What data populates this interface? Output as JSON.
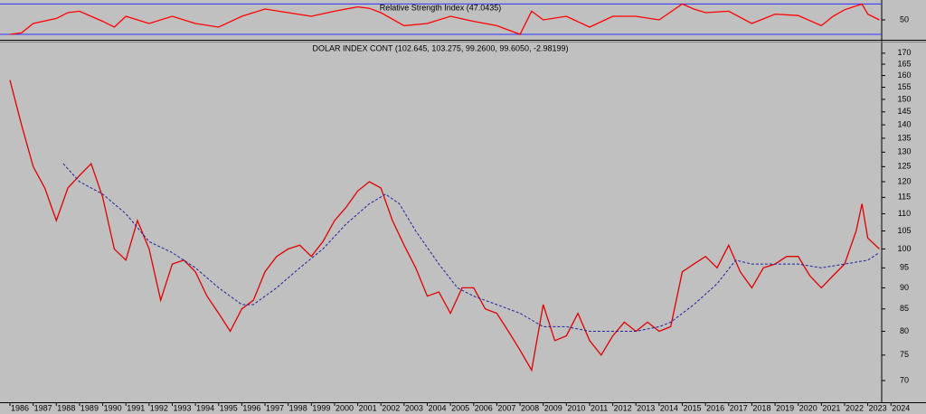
{
  "chart_data": [
    {
      "type": "line",
      "title": "Relative Strength Index (47.0435)",
      "xlim": [
        1985.57,
        2023.6
      ],
      "ylim": [
        25,
        75
      ],
      "yticks": [
        50
      ],
      "levels": [
        72,
        30
      ],
      "level_color": "#3030ff",
      "series": [
        {
          "color": "#ff0000",
          "x": [
            1986,
            1986.5,
            1987,
            1988,
            1988.5,
            1989,
            1990,
            1990.5,
            1991,
            1992,
            1993,
            1994,
            1995,
            1996,
            1997,
            1998,
            1999,
            2000,
            2001,
            2001.5,
            2002,
            2003,
            2004,
            2005,
            2006,
            2007,
            2008,
            2008.5,
            2009,
            2010,
            2011,
            2012,
            2013,
            2014,
            2015,
            2015.5,
            2016,
            2017,
            2018,
            2019,
            2020,
            2021,
            2021.5,
            2022,
            2022.75,
            2023,
            2023.5
          ],
          "values": [
            30,
            32,
            45,
            52,
            60,
            62,
            48,
            40,
            55,
            45,
            55,
            45,
            40,
            55,
            65,
            60,
            55,
            62,
            68,
            66,
            60,
            42,
            45,
            55,
            48,
            42,
            30,
            62,
            50,
            55,
            40,
            55,
            55,
            50,
            72,
            65,
            60,
            62,
            45,
            58,
            56,
            42,
            55,
            64,
            72,
            58,
            50
          ]
        }
      ]
    },
    {
      "type": "line",
      "title": "DOLAR INDEX CONT (102.645, 103.275, 99.2600, 99.6050, -2.98199)",
      "xlim": [
        1985.57,
        2023.6
      ],
      "ylim": [
        66,
        175
      ],
      "log_y": true,
      "yticks": [
        70,
        75,
        80,
        85,
        90,
        95,
        100,
        105,
        110,
        115,
        120,
        125,
        130,
        135,
        140,
        145,
        150,
        155,
        160,
        165,
        170
      ],
      "xticks": [
        1986,
        1987,
        1988,
        1989,
        1990,
        1991,
        1992,
        1993,
        1994,
        1995,
        1996,
        1997,
        1998,
        1999,
        2000,
        2001,
        2002,
        2003,
        2004,
        2005,
        2006,
        2007,
        2008,
        2009,
        2010,
        2011,
        2012,
        2013,
        2014,
        2015,
        2016,
        2017,
        2018,
        2019,
        2020,
        2021,
        2022,
        2023,
        2024
      ],
      "series": [
        {
          "color": "#e00000",
          "dash": false,
          "x": [
            1986,
            1986.5,
            1987,
            1987.5,
            1988,
            1988.5,
            1989,
            1989.5,
            1990,
            1990.5,
            1991,
            1991.5,
            1992,
            1992.5,
            1993,
            1993.5,
            1994,
            1994.5,
            1995,
            1995.5,
            1996,
            1996.5,
            1997,
            1997.5,
            1998,
            1998.5,
            1999,
            1999.5,
            2000,
            2000.5,
            2001,
            2001.5,
            2002,
            2002.5,
            2003,
            2003.5,
            2004,
            2004.5,
            2005,
            2005.5,
            2006,
            2006.5,
            2007,
            2007.5,
            2008,
            2008.5,
            2009,
            2009.5,
            2010,
            2010.5,
            2011,
            2011.5,
            2012,
            2012.5,
            2013,
            2013.5,
            2014,
            2014.5,
            2015,
            2015.5,
            2016,
            2016.5,
            2017,
            2017.5,
            2018,
            2018.5,
            2019,
            2019.5,
            2020,
            2020.5,
            2021,
            2021.5,
            2022,
            2022.5,
            2022.75,
            2023,
            2023.5
          ],
          "values": [
            158,
            140,
            125,
            118,
            108,
            118,
            122,
            126,
            115,
            100,
            97,
            108,
            100,
            87,
            96,
            97,
            94,
            88,
            84,
            80,
            85,
            87,
            94,
            98,
            100,
            101,
            98,
            102,
            108,
            112,
            117,
            120,
            118,
            108,
            101,
            95,
            88,
            89,
            84,
            90,
            90,
            85,
            84,
            80,
            76,
            72,
            86,
            78,
            79,
            84,
            78,
            75,
            79,
            82,
            80,
            82,
            80,
            81,
            94,
            96,
            98,
            95,
            101,
            94,
            90,
            95,
            96,
            98,
            98,
            93,
            90,
            93,
            96,
            105,
            113,
            103,
            100
          ]
        },
        {
          "color": "#2020a0",
          "dash": true,
          "x": [
            1988.3,
            1989,
            1990,
            1991,
            1992,
            1993,
            1994,
            1995,
            1996,
            1996.5,
            1997.5,
            1998.5,
            1999.5,
            2000.5,
            2001.5,
            2002.2,
            2002.8,
            2003.5,
            2004.5,
            2005.3,
            2006,
            2007,
            2008,
            2009,
            2010,
            2011,
            2012,
            2013,
            2014,
            2014.5,
            2015.5,
            2016.5,
            2017.3,
            2018,
            2019,
            2020,
            2021,
            2022,
            2023,
            2023.5
          ],
          "values": [
            126,
            120,
            116,
            110,
            102,
            99,
            95,
            90,
            86,
            86,
            90,
            95,
            100,
            107,
            113,
            116,
            113,
            105,
            96,
            90,
            88,
            86,
            84,
            81,
            81,
            80,
            80,
            80,
            81,
            82,
            86,
            91,
            97,
            96,
            96,
            96,
            95,
            96,
            97,
            99
          ]
        }
      ]
    }
  ]
}
